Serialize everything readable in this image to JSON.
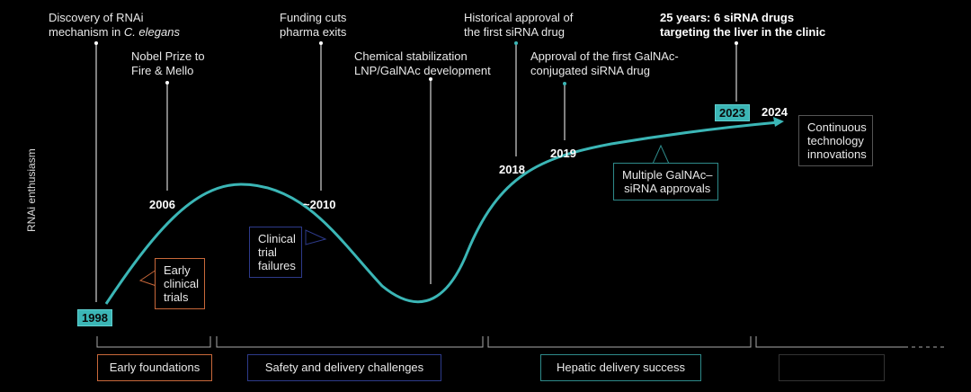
{
  "axis": {
    "y_label": "RNAi enthusiasm"
  },
  "annotations": {
    "rnai_discovery_line1": "Discovery of RNAi",
    "rnai_discovery_line2_prefix": "mechanism in ",
    "rnai_discovery_line2_italic": "C. elegans",
    "nobel_line1": "Nobel Prize to",
    "nobel_line2": "Fire & Mello",
    "funding_line1": "Funding cuts",
    "funding_line2": "pharma exits",
    "chem_line1": "Chemical stabilization",
    "chem_line2": "LNP/GalNAc development",
    "hist_line1": "Historical approval of",
    "hist_line2": "the first siRNA drug",
    "galnac_line1": "Approval of the first GalNAc-",
    "galnac_line2": "conjugated siRNA drug",
    "liver_line1": "25 years: 6 siRNA drugs",
    "liver_line2": "targeting the liver in the clinic"
  },
  "years": {
    "y1998": "1998",
    "y2006": "2006",
    "y2010": "~2010",
    "y2018": "2018",
    "y2019": "2019",
    "y2023": "2023",
    "y2024": "2024"
  },
  "callouts": {
    "early_trials": [
      "Early",
      "clinical",
      "trials"
    ],
    "trial_failures": [
      "Clinical",
      "trial",
      "failures"
    ],
    "galnac_approvals": [
      "Multiple GalNAc–",
      "siRNA approvals"
    ],
    "innovations": [
      "Continuous",
      "technology",
      "innovations"
    ]
  },
  "phases": {
    "early": "Early foundations",
    "safety": "Safety and delivery challenges",
    "hepatic": "Hepatic delivery success",
    "future": ""
  },
  "colors": {
    "curve": "#3bb6b6",
    "early_phase": "#c8683a",
    "safety_phase": "#2d3a8a",
    "hepatic_phase": "#2e8a8a",
    "background": "#000000"
  }
}
